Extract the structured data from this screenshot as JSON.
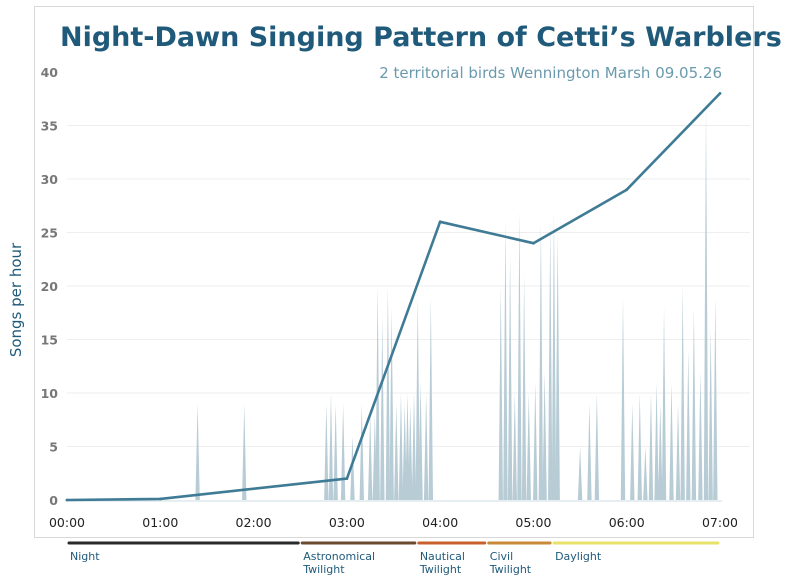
{
  "chart_data": {
    "type": "line",
    "title": "Night-Dawn Singing Pattern of Cetti’s Warblers",
    "subtitle": "2 territorial birds  Wennington Marsh  09.05.26",
    "ylabel": "Songs per hour",
    "xlabel": "",
    "ylim": [
      0,
      40
    ],
    "xlim": [
      0,
      7
    ],
    "y_ticks": [
      "0",
      "5",
      "10",
      "15",
      "20",
      "25",
      "30",
      "35",
      "40"
    ],
    "x_ticks": [
      "00:00",
      "01:00",
      "02:00",
      "03:00",
      "04:00",
      "05:00",
      "06:00",
      "07:00"
    ],
    "grid": "horizontal",
    "series": [
      {
        "type": "line",
        "color": "#3f7b95",
        "x": [
          0,
          1,
          3,
          4,
          5,
          6,
          7
        ],
        "y": [
          0,
          0.1,
          2,
          26,
          24,
          29,
          38
        ]
      },
      {
        "type": "spikes",
        "color": "#b8ccd6",
        "x": [
          1.4,
          1.9,
          2.78,
          2.83,
          2.88,
          2.96,
          3.06,
          3.16,
          3.25,
          3.3,
          3.33,
          3.38,
          3.44,
          3.48,
          3.53,
          3.58,
          3.62,
          3.65,
          3.68,
          3.72,
          3.76,
          3.79,
          3.85,
          3.9,
          4.65,
          4.7,
          4.75,
          4.8,
          4.85,
          4.9,
          4.95,
          5.02,
          5.08,
          5.12,
          5.18,
          5.22,
          5.26,
          5.5,
          5.6,
          5.68,
          5.96,
          6.06,
          6.14,
          6.2,
          6.26,
          6.32,
          6.36,
          6.4,
          6.48,
          6.55,
          6.6,
          6.66,
          6.72,
          6.79,
          6.85,
          6.9,
          6.95
        ],
        "y": [
          9,
          9,
          9,
          10,
          9,
          9,
          6,
          9,
          8,
          8,
          20,
          17,
          20,
          18,
          9,
          10,
          9,
          10,
          9,
          10,
          19,
          11,
          10,
          19,
          20,
          26,
          23,
          10,
          27,
          21,
          10,
          11,
          26,
          12,
          26,
          27,
          25,
          5,
          9,
          10,
          19,
          9,
          10,
          5,
          10,
          11,
          9,
          18,
          11,
          9,
          20,
          14,
          18,
          12,
          37,
          16,
          19
        ]
      }
    ],
    "phases": [
      {
        "label": [
          "Night"
        ],
        "start": 0,
        "end": 2.5,
        "color": "#2a2a2a"
      },
      {
        "label": [
          "Astronomical",
          "Twilight"
        ],
        "start": 2.5,
        "end": 3.75,
        "color": "#6b4a2e"
      },
      {
        "label": [
          "Nautical",
          "Twilight"
        ],
        "start": 3.75,
        "end": 4.5,
        "color": "#c8602e"
      },
      {
        "label": [
          "Civil",
          "Twilight"
        ],
        "start": 4.5,
        "end": 5.2,
        "color": "#c8893a"
      },
      {
        "label": [
          "Daylight"
        ],
        "start": 5.2,
        "end": 7,
        "color": "#e8e26a"
      }
    ]
  }
}
